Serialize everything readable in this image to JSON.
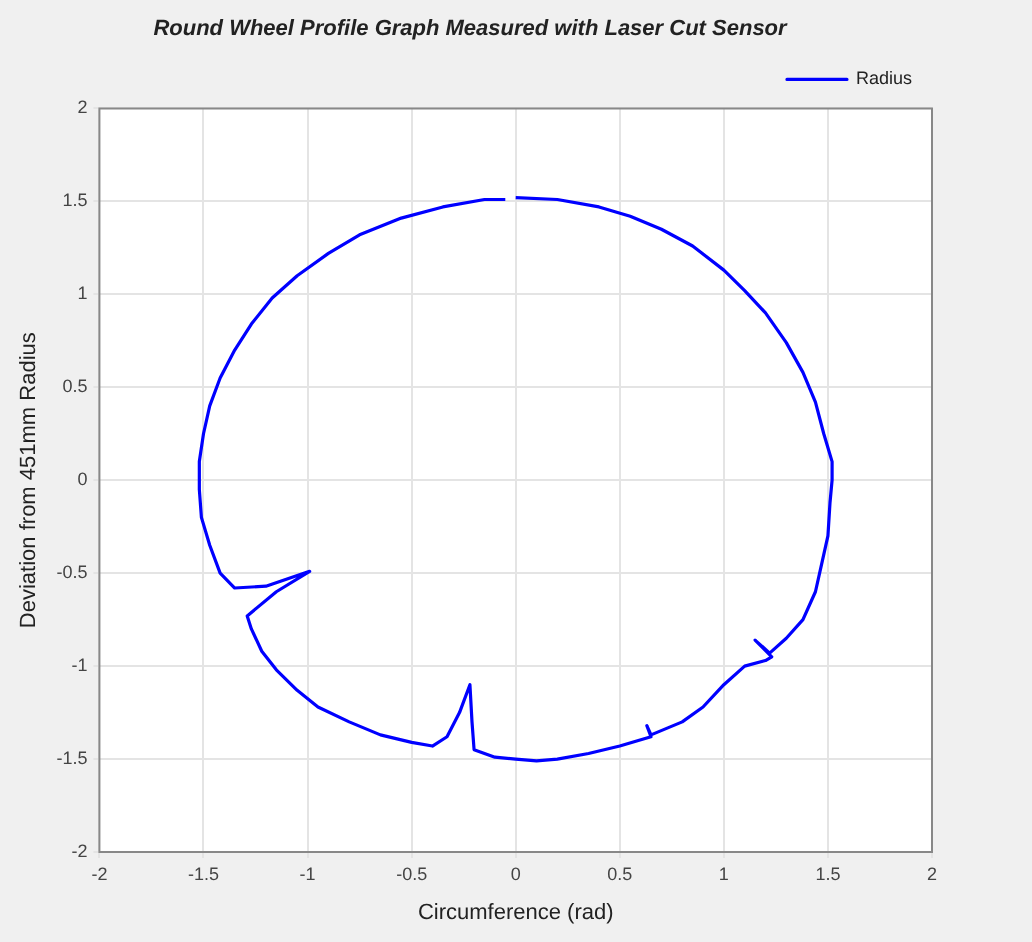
{
  "chart_data": {
    "type": "line",
    "title": "Round Wheel Profile Graph Measured with Laser Cut Sensor",
    "xlabel": "Circumference (rad)",
    "ylabel": "Deviation from 451mm Radius",
    "xlim": [
      -2,
      2
    ],
    "xticks": [
      -2,
      -1.5,
      -1,
      -0.5,
      0,
      0.5,
      1,
      1.5,
      2
    ],
    "ylim": [
      -2,
      2
    ],
    "yticks": [
      -2,
      -1.5,
      -1,
      -0.5,
      0,
      0.5,
      1,
      1.5,
      2
    ],
    "grid": true,
    "legend": "top right",
    "series": [
      {
        "name": "Radius",
        "color": "#0000ff",
        "x": [
          0,
          0.2,
          0.4,
          0.55,
          0.7,
          0.85,
          1.0,
          1.1,
          1.2,
          1.3,
          1.38,
          1.44,
          1.48,
          1.52,
          1.52,
          1.51,
          1.5,
          1.47,
          1.44,
          1.38,
          1.3,
          1.22,
          1.15,
          1.23,
          1.2,
          1.1,
          1.0,
          0.9,
          0.8,
          0.65,
          0.63,
          0.65,
          0.5,
          0.35,
          0.2,
          0.1,
          0,
          -0.1,
          -0.2,
          -0.21,
          -0.22,
          -0.27,
          -0.33,
          -0.4,
          -0.5,
          -0.65,
          -0.8,
          -0.95,
          -1.05,
          -1.15,
          -1.22,
          -1.27,
          -1.29,
          -1.15,
          -0.99,
          -1.2,
          -1.35,
          -1.42,
          -1.47,
          -1.51,
          -1.52,
          -1.52,
          -1.5,
          -1.47,
          -1.42,
          -1.35,
          -1.27,
          -1.17,
          -1.05,
          -0.9,
          -0.75,
          -0.55,
          -0.35,
          -0.15,
          -0.05
        ],
        "values": [
          1.52,
          1.51,
          1.47,
          1.42,
          1.35,
          1.26,
          1.13,
          1.02,
          0.9,
          0.74,
          0.58,
          0.42,
          0.25,
          0.1,
          0,
          -0.12,
          -0.3,
          -0.45,
          -0.6,
          -0.75,
          -0.85,
          -0.93,
          -0.86,
          -0.95,
          -0.97,
          -1.0,
          -1.1,
          -1.22,
          -1.3,
          -1.37,
          -1.32,
          -1.38,
          -1.43,
          -1.47,
          -1.5,
          -1.51,
          -1.5,
          -1.49,
          -1.45,
          -1.3,
          -1.1,
          -1.25,
          -1.38,
          -1.43,
          -1.41,
          -1.37,
          -1.3,
          -1.22,
          -1.13,
          -1.02,
          -0.92,
          -0.8,
          -0.73,
          -0.6,
          -0.49,
          -0.57,
          -0.58,
          -0.5,
          -0.35,
          -0.2,
          -0.05,
          0.1,
          0.25,
          0.4,
          0.55,
          0.7,
          0.84,
          0.98,
          1.1,
          1.22,
          1.32,
          1.41,
          1.47,
          1.51,
          1.51
        ]
      }
    ]
  }
}
